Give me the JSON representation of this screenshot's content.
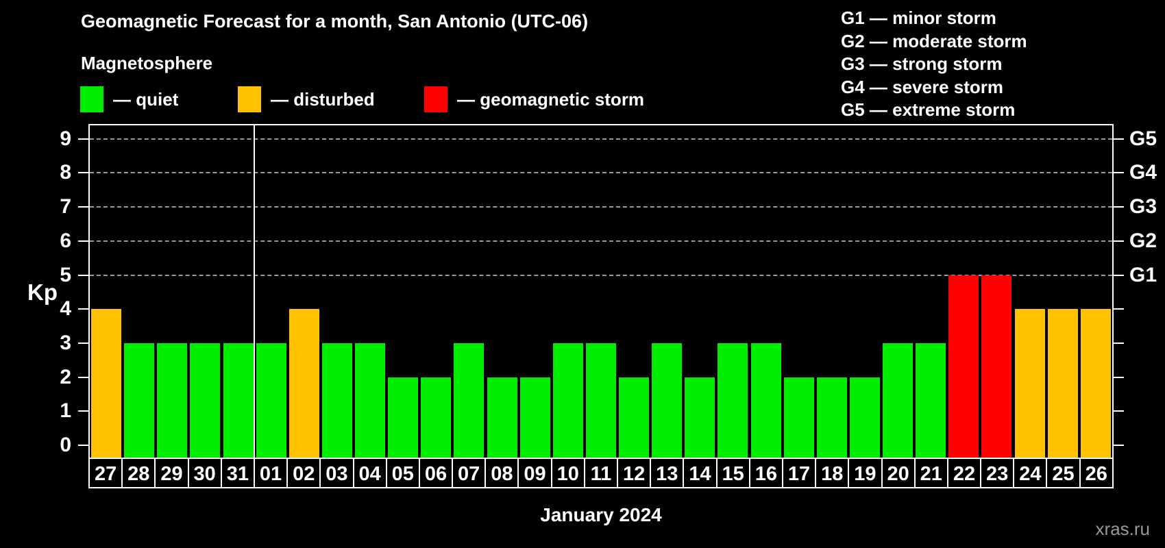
{
  "header": {
    "title": "Geomagnetic Forecast for a month, San Antonio (UTC-06)",
    "subtitle": "Magnetosphere"
  },
  "legend": {
    "items": [
      {
        "key": "quiet",
        "label": "— quiet",
        "color": "#00ed00"
      },
      {
        "key": "disturbed",
        "label": "— disturbed",
        "color": "#ffc100"
      },
      {
        "key": "storm",
        "label": "— geomagnetic storm",
        "color": "#ff0000"
      }
    ]
  },
  "storm_scale_legend": {
    "items": [
      "G1 — minor storm",
      "G2 — moderate storm",
      "G3 — strong storm",
      "G4 — severe storm",
      "G5 — extreme storm"
    ]
  },
  "chart_data": {
    "type": "bar",
    "title": "Geomagnetic Forecast for a month, San Antonio (UTC-06)",
    "subtitle": "Magnetosphere",
    "ylabel": "Kp",
    "xlabel": "January 2024",
    "ylim": [
      0,
      9
    ],
    "yticks": [
      0,
      1,
      2,
      3,
      4,
      5,
      6,
      7,
      8,
      9
    ],
    "gridlines_at": [
      5,
      6,
      7,
      8,
      9
    ],
    "grid": "dashed horizontal at Kp 5-9 only",
    "right_axis_labels": [
      {
        "label": "G1",
        "kp": 5
      },
      {
        "label": "G2",
        "kp": 6
      },
      {
        "label": "G3",
        "kp": 7
      },
      {
        "label": "G4",
        "kp": 8
      },
      {
        "label": "G5",
        "kp": 9
      }
    ],
    "month_separator_after_index": 4,
    "categories": [
      "27",
      "28",
      "29",
      "30",
      "31",
      "01",
      "02",
      "03",
      "04",
      "05",
      "06",
      "07",
      "08",
      "09",
      "10",
      "11",
      "12",
      "13",
      "14",
      "15",
      "16",
      "17",
      "18",
      "19",
      "20",
      "21",
      "22",
      "23",
      "24",
      "25",
      "26"
    ],
    "values": [
      4,
      3,
      3,
      3,
      3,
      3,
      4,
      3,
      3,
      2,
      2,
      3,
      2,
      2,
      3,
      3,
      2,
      3,
      2,
      3,
      3,
      2,
      2,
      2,
      3,
      3,
      5,
      5,
      4,
      4,
      4
    ],
    "statuses": [
      "disturbed",
      "quiet",
      "quiet",
      "quiet",
      "quiet",
      "quiet",
      "disturbed",
      "quiet",
      "quiet",
      "quiet",
      "quiet",
      "quiet",
      "quiet",
      "quiet",
      "quiet",
      "quiet",
      "quiet",
      "quiet",
      "quiet",
      "quiet",
      "quiet",
      "quiet",
      "quiet",
      "quiet",
      "quiet",
      "quiet",
      "storm",
      "storm",
      "disturbed",
      "disturbed",
      "disturbed"
    ],
    "colors": {
      "quiet": "#00ed00",
      "disturbed": "#ffc100",
      "storm": "#ff0000"
    }
  },
  "footer": {
    "xaxis_title": "January 2024",
    "watermark": "xras.ru"
  }
}
